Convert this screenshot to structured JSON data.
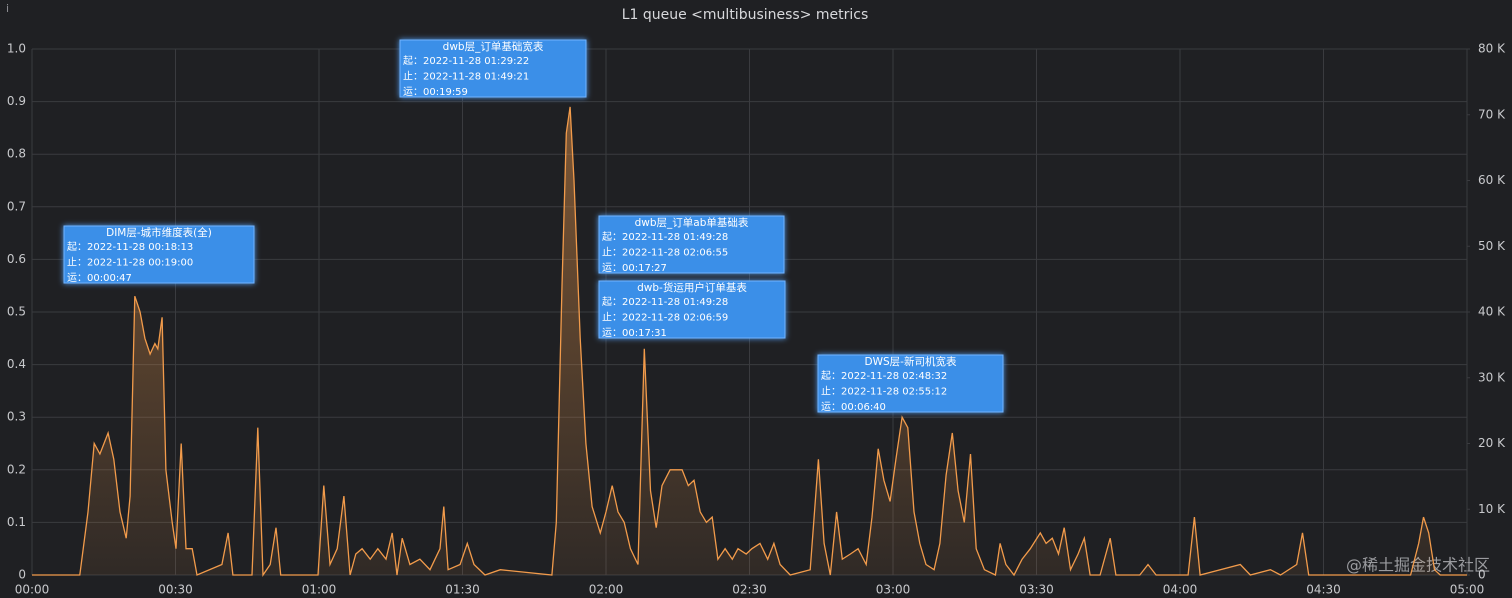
{
  "chart_data": {
    "type": "line",
    "title": "L1 queue <multibusiness> metrics",
    "watermark": "@稀土掘金技术社区",
    "x": [
      0,
      10,
      11.7,
      13,
      14.2,
      15.9,
      17.1,
      18.4,
      19.7,
      20.5,
      21.5,
      22.6,
      23.6,
      24.7,
      25.7,
      26.3,
      27.2,
      28,
      29.3,
      30.1,
      31.2,
      32.2,
      33.5,
      34.5,
      39.7,
      41,
      42,
      46,
      47.2,
      48.3,
      49.8,
      51,
      52,
      59.8,
      61,
      62.3,
      63.8,
      65.2,
      66.5,
      67.7,
      69,
      70.7,
      72.3,
      74,
      75.3,
      76.3,
      77.4,
      79,
      81.1,
      83.2,
      85.3,
      86.1,
      87,
      89.5,
      91,
      92.4,
      94.7,
      97.9,
      108.7,
      109.6,
      110.8,
      111.7,
      112.5,
      113.3,
      114.6,
      115.8,
      117.1,
      118.8,
      120,
      121.3,
      122.5,
      123.8,
      125.1,
      126.7,
      128,
      129.3,
      130.5,
      131.7,
      133.4,
      134.7,
      135.9,
      137.2,
      138.4,
      139.7,
      141,
      142.2,
      143.4,
      144.9,
      146.4,
      147.6,
      149.3,
      150.5,
      152.2,
      153.8,
      155.1,
      156.4,
      158.5,
      162.7,
      164.4,
      165.6,
      166.9,
      168.2,
      169.4,
      171.1,
      172.7,
      174.4,
      175.6,
      176.9,
      178.1,
      179.4,
      180.6,
      181.9,
      183.1,
      184.4,
      185.6,
      186.9,
      188.6,
      189.8,
      191.1,
      192.4,
      193.6,
      194.9,
      196.2,
      197.4,
      199.1,
      201.4,
      202.4,
      203.6,
      205.3,
      207,
      208.7,
      210.8,
      212,
      213.3,
      214.6,
      215.8,
      217.1,
      218.7,
      220,
      221.2,
      223.3,
      225.4,
      226.6,
      231.6,
      233.3,
      235,
      241.7,
      243,
      244.2,
      252.6,
      254.7,
      258.9,
      261,
      264.4,
      265.6,
      266.9,
      288.2,
      289.9,
      290.9,
      292,
      293.2,
      294.4,
      300
    ],
    "series": [
      {
        "name": "metrics",
        "color": "#f29b4b",
        "values": [
          0,
          0,
          0.12,
          0.25,
          0.23,
          0.27,
          0.22,
          0.12,
          0.07,
          0.15,
          0.53,
          0.5,
          0.45,
          0.42,
          0.44,
          0.43,
          0.49,
          0.2,
          0.1,
          0.05,
          0.25,
          0.05,
          0.05,
          0,
          0.02,
          0.08,
          0,
          0,
          0.28,
          0,
          0.02,
          0.09,
          0,
          0,
          0.17,
          0.02,
          0.05,
          0.15,
          0,
          0.04,
          0.05,
          0.03,
          0.05,
          0.03,
          0.08,
          0,
          0.07,
          0.02,
          0.03,
          0.01,
          0.05,
          0.13,
          0.01,
          0.02,
          0.06,
          0.02,
          0,
          0.01,
          0,
          0.1,
          0.55,
          0.84,
          0.89,
          0.75,
          0.45,
          0.25,
          0.13,
          0.08,
          0.12,
          0.17,
          0.12,
          0.1,
          0.05,
          0.02,
          0.43,
          0.16,
          0.09,
          0.17,
          0.2,
          0.2,
          0.2,
          0.17,
          0.18,
          0.12,
          0.1,
          0.11,
          0.03,
          0.05,
          0.03,
          0.05,
          0.04,
          0.05,
          0.06,
          0.03,
          0.06,
          0.02,
          0,
          0.01,
          0.22,
          0.06,
          0,
          0.12,
          0.03,
          0.04,
          0.05,
          0.02,
          0.11,
          0.24,
          0.18,
          0.14,
          0.22,
          0.3,
          0.28,
          0.12,
          0.06,
          0.02,
          0.01,
          0.06,
          0.19,
          0.27,
          0.16,
          0.1,
          0.23,
          0.05,
          0.01,
          0,
          0.06,
          0.02,
          0,
          0.03,
          0.05,
          0.08,
          0.06,
          0.07,
          0.04,
          0.09,
          0.01,
          0.04,
          0.07,
          0,
          0,
          0.07,
          0,
          0,
          0.02,
          0,
          0,
          0.11,
          0,
          0.02,
          0,
          0.01,
          0,
          0.02,
          0.08,
          0,
          0,
          0.06,
          0.11,
          0.08,
          0.01,
          0,
          0
        ]
      }
    ],
    "xlim": [
      0,
      300
    ],
    "xticks": [
      {
        "value": 0,
        "label": "00:00"
      },
      {
        "value": 30,
        "label": "00:30"
      },
      {
        "value": 60,
        "label": "01:00"
      },
      {
        "value": 90,
        "label": "01:30"
      },
      {
        "value": 120,
        "label": "02:00"
      },
      {
        "value": 150,
        "label": "02:30"
      },
      {
        "value": 180,
        "label": "03:00"
      },
      {
        "value": 210,
        "label": "03:30"
      },
      {
        "value": 240,
        "label": "04:00"
      },
      {
        "value": 270,
        "label": "04:30"
      },
      {
        "value": 300,
        "label": "05:00"
      }
    ],
    "ylim": [
      0,
      1
    ],
    "yticks": [
      0,
      0.1,
      0.2,
      0.3,
      0.4,
      0.5,
      0.6,
      0.7,
      0.8,
      0.9,
      {
        "value": 1,
        "label": "1.0"
      }
    ],
    "y2lim": [
      0,
      80000
    ],
    "y2ticks": [
      0,
      {
        "value": 10000,
        "label": "10 K"
      },
      {
        "value": 20000,
        "label": "20 K"
      },
      {
        "value": 30000,
        "label": "30 K"
      },
      {
        "value": 40000,
        "label": "40 K"
      },
      {
        "value": 50000,
        "label": "50 K"
      },
      {
        "value": 60000,
        "label": "60 K"
      },
      {
        "value": 70000,
        "label": "70 K"
      },
      {
        "value": 80000,
        "label": "80 K"
      }
    ],
    "grid": true,
    "annotations": [
      {
        "title": "DIM层-城市维度表(全)",
        "lines": [
          "起：2022-11-28 00:18:13",
          "止：2022-11-28 00:19:00",
          "运：00:00:47"
        ]
      },
      {
        "title": "dwb层_订单基础宽表",
        "lines": [
          "起：2022-11-28 01:29:22",
          "止：2022-11-28 01:49:21",
          "运：00:19:59"
        ]
      },
      {
        "title": "dwb层_订单ab单基础表",
        "lines": [
          "起：2022-11-28 01:49:28",
          "止：2022-11-28 02:06:55",
          "运：00:17:27"
        ]
      },
      {
        "title": "dwb-货运用户订单基表",
        "lines": [
          "起：2022-11-28 01:49:28",
          "止：2022-11-28 02:06:59",
          "运：00:17:31"
        ]
      },
      {
        "title": "DWS层-新司机宽表",
        "lines": [
          "起：2022-11-28 02:48:32",
          "止：2022-11-28 02:55:12",
          "运：00:06:40"
        ]
      }
    ]
  }
}
